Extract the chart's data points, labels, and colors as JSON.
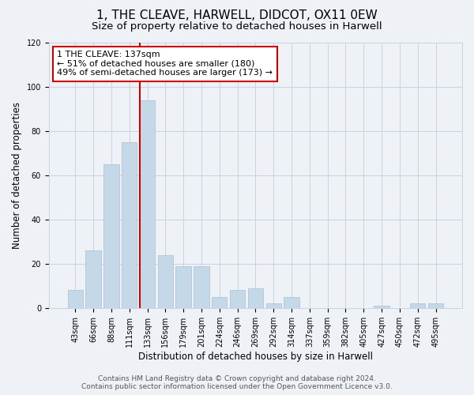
{
  "title": "1, THE CLEAVE, HARWELL, DIDCOT, OX11 0EW",
  "subtitle": "Size of property relative to detached houses in Harwell",
  "xlabel": "Distribution of detached houses by size in Harwell",
  "ylabel": "Number of detached properties",
  "bar_labels": [
    "43sqm",
    "66sqm",
    "88sqm",
    "111sqm",
    "133sqm",
    "156sqm",
    "179sqm",
    "201sqm",
    "224sqm",
    "246sqm",
    "269sqm",
    "292sqm",
    "314sqm",
    "337sqm",
    "359sqm",
    "382sqm",
    "405sqm",
    "427sqm",
    "450sqm",
    "472sqm",
    "495sqm"
  ],
  "bar_heights": [
    8,
    26,
    65,
    75,
    94,
    24,
    19,
    19,
    5,
    8,
    9,
    2,
    5,
    0,
    0,
    0,
    0,
    1,
    0,
    2,
    2
  ],
  "highlight_bar_index": 4,
  "bar_color": "#c5d8e8",
  "bar_edge_color": "#a8c0d4",
  "highlight_bar_edge_color": "#cc0000",
  "ylim": [
    0,
    120
  ],
  "yticks": [
    0,
    20,
    40,
    60,
    80,
    100,
    120
  ],
  "annotation_text": "1 THE CLEAVE: 137sqm\n← 51% of detached houses are smaller (180)\n49% of semi-detached houses are larger (173) →",
  "footer_line1": "Contains HM Land Registry data © Crown copyright and database right 2024.",
  "footer_line2": "Contains public sector information licensed under the Open Government Licence v3.0.",
  "background_color": "#eef2f7",
  "grid_color": "#c8d4e0",
  "title_fontsize": 11,
  "subtitle_fontsize": 9.5,
  "axis_label_fontsize": 8.5,
  "tick_fontsize": 7,
  "footer_fontsize": 6.5
}
